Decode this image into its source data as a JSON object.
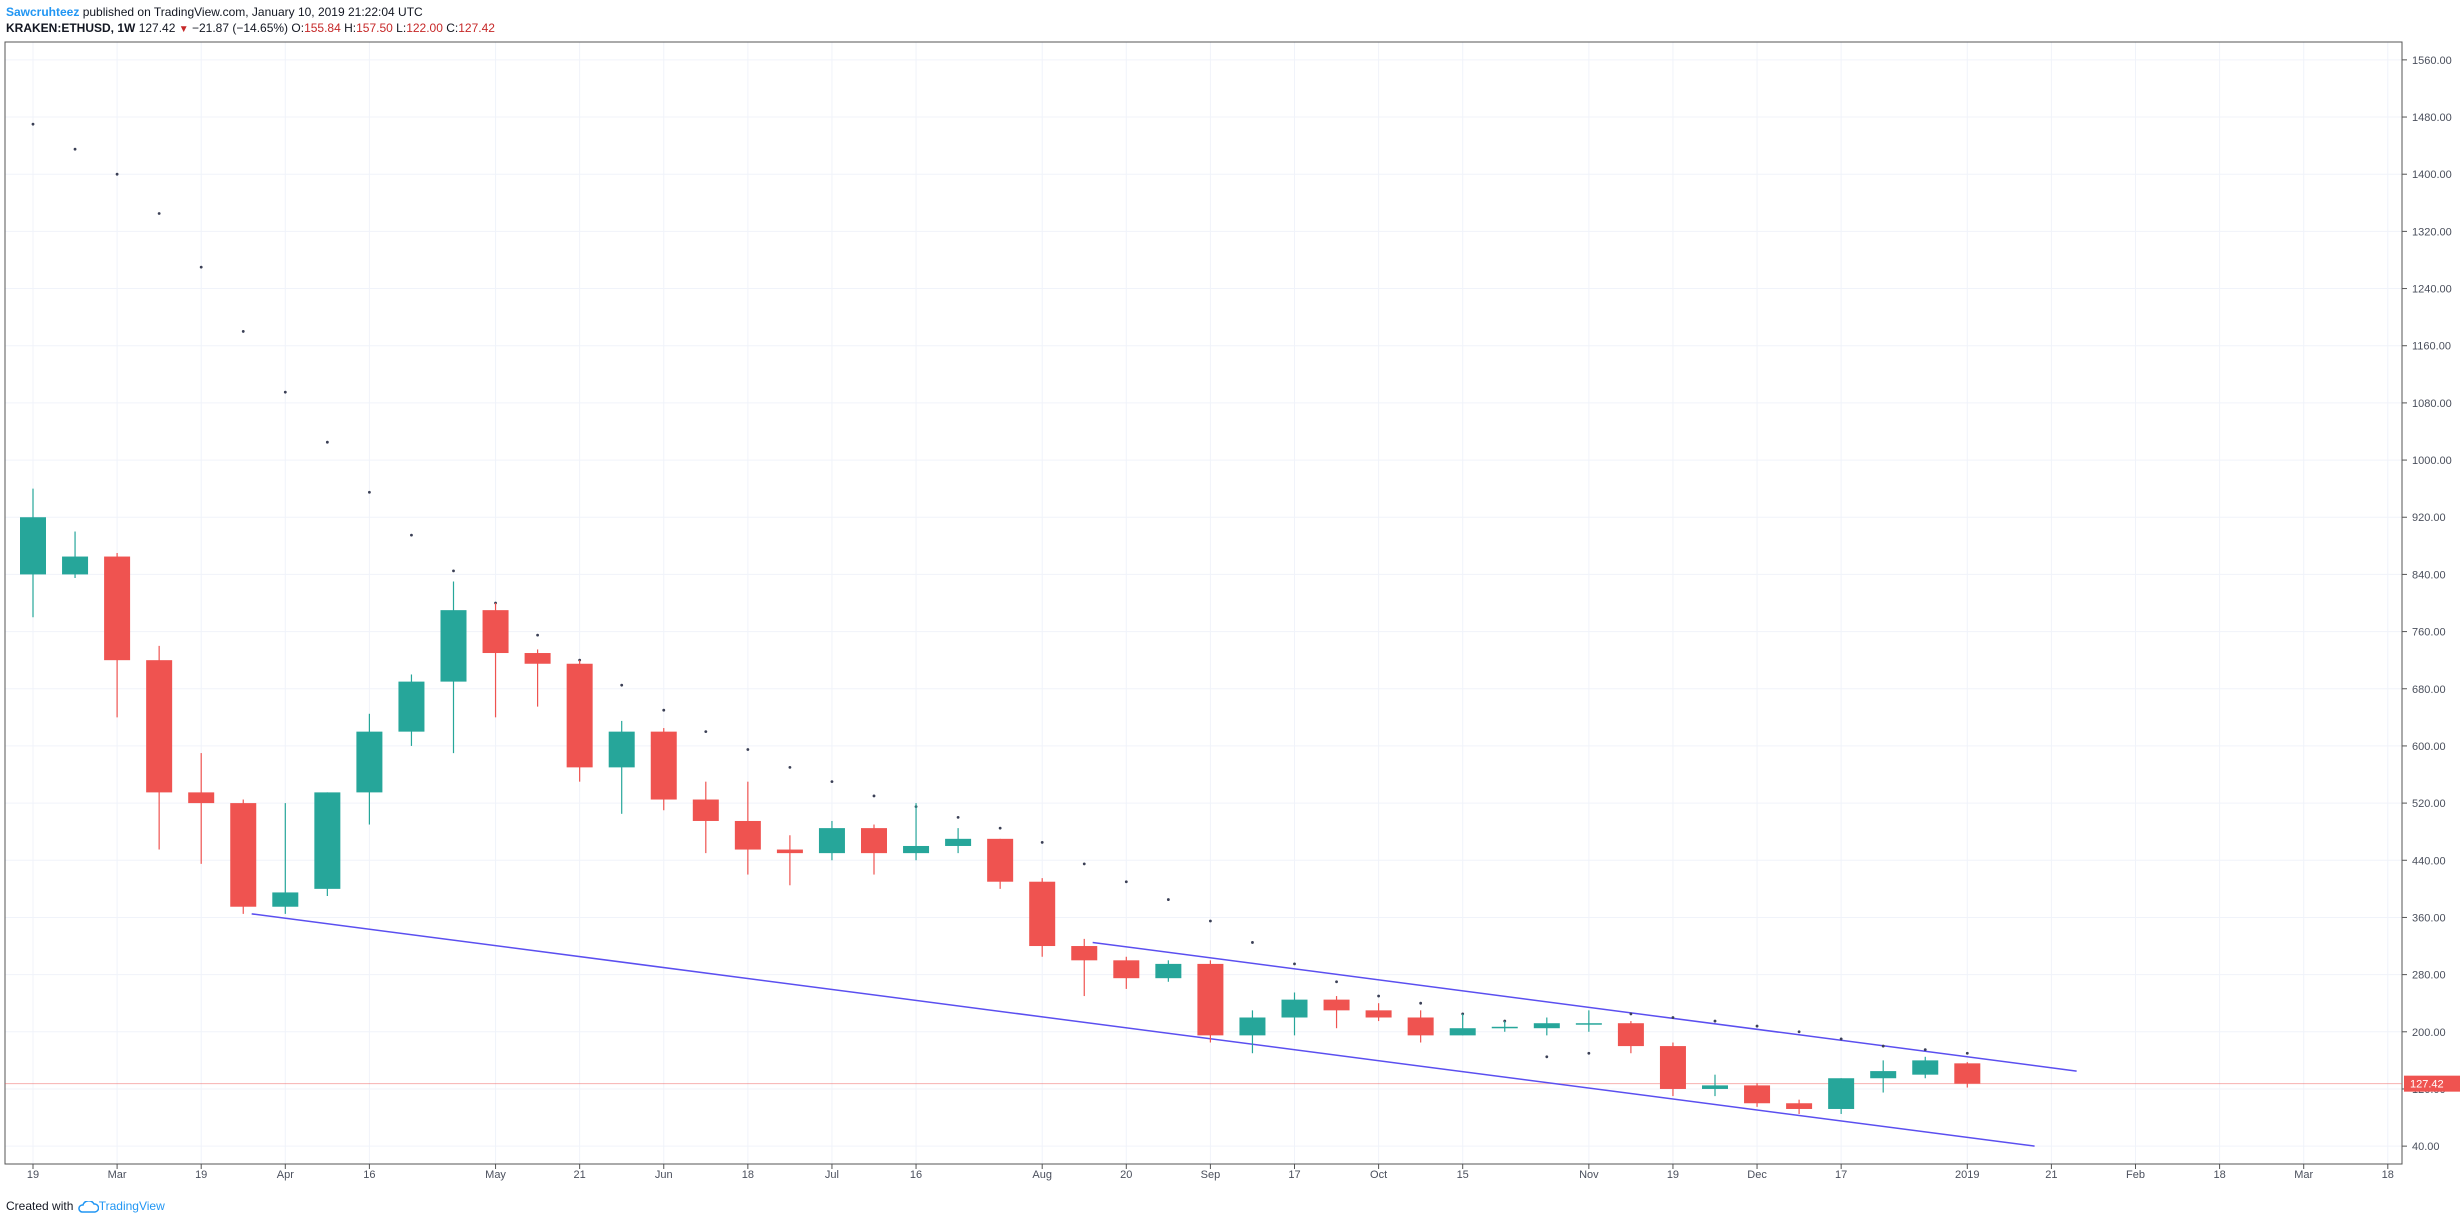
{
  "header": {
    "author": "Sawcruhteez",
    "published_text": "published on TradingView.com, January 10, 2019 21:22:04 UTC",
    "symbol": "KRAKEN:ETHUSD, 1W",
    "last": "127.42",
    "change": "−21.87 (−14.65%)",
    "o_label": "O:",
    "o_value": "155.84",
    "h_label": "H:",
    "h_value": "157.50",
    "l_label": "L:",
    "l_value": "122.00",
    "c_label": "C:",
    "c_value": "127.42"
  },
  "footer": {
    "created_with": "Created with",
    "brand": "TradingView"
  },
  "colors": {
    "up": "#26a69a",
    "down": "#ef5350",
    "trendline": "#5b4ff0",
    "price_line": "#ef5350",
    "sar_dot": "#3a3f55",
    "grid": "#f0f3fa",
    "axis_text": "#4a4f5c"
  },
  "chart_data": {
    "type": "candlestick",
    "symbol": "KRAKEN:ETHUSD",
    "interval": "1W",
    "y_axis": {
      "ticks": [
        40,
        120,
        200,
        280,
        360,
        440,
        520,
        600,
        680,
        760,
        840,
        920,
        1000,
        1080,
        1160,
        1240,
        1320,
        1400,
        1480,
        1560
      ],
      "tick_labels": [
        "40.00",
        "120.00",
        "200.00",
        "280.00",
        "360.00",
        "440.00",
        "520.00",
        "600.00",
        "680.00",
        "760.00",
        "840.00",
        "920.00",
        "1000.00",
        "1080.00",
        "1160.00",
        "1240.00",
        "1320.00",
        "1400.00",
        "1480.00",
        "1560.00"
      ],
      "range": [
        15,
        1585
      ],
      "last_price_label": "127.42"
    },
    "x_axis": {
      "start_week": 0,
      "end_week": 57.4,
      "tick_labels": [
        {
          "week": 0,
          "label": "19"
        },
        {
          "week": 2,
          "label": "Mar"
        },
        {
          "week": 4,
          "label": "19"
        },
        {
          "week": 6,
          "label": "Apr"
        },
        {
          "week": 8,
          "label": "16"
        },
        {
          "week": 11,
          "label": "May"
        },
        {
          "week": 13,
          "label": "21"
        },
        {
          "week": 15,
          "label": "Jun"
        },
        {
          "week": 17,
          "label": "18"
        },
        {
          "week": 19,
          "label": "Jul"
        },
        {
          "week": 21,
          "label": "16"
        },
        {
          "week": 24,
          "label": "Aug"
        },
        {
          "week": 26,
          "label": "20"
        },
        {
          "week": 28,
          "label": "Sep"
        },
        {
          "week": 30,
          "label": "17"
        },
        {
          "week": 32,
          "label": "Oct"
        },
        {
          "week": 34,
          "label": "15"
        },
        {
          "week": 37,
          "label": "Nov"
        },
        {
          "week": 39,
          "label": "19"
        },
        {
          "week": 41,
          "label": "Dec"
        },
        {
          "week": 43,
          "label": "17"
        },
        {
          "week": 46,
          "label": "2019"
        },
        {
          "week": 48,
          "label": "21"
        },
        {
          "week": 50,
          "label": "Feb"
        },
        {
          "week": 52,
          "label": "18"
        },
        {
          "week": 54,
          "label": "Mar"
        },
        {
          "week": 56,
          "label": "18"
        }
      ]
    },
    "candles": [
      {
        "o": 840,
        "h": 960,
        "l": 780,
        "c": 920
      },
      {
        "o": 840,
        "h": 900,
        "l": 835,
        "c": 865
      },
      {
        "o": 865,
        "h": 870,
        "l": 640,
        "c": 720
      },
      {
        "o": 720,
        "h": 740,
        "l": 455,
        "c": 535
      },
      {
        "o": 535,
        "h": 590,
        "l": 435,
        "c": 520
      },
      {
        "o": 520,
        "h": 525,
        "l": 365,
        "c": 375
      },
      {
        "o": 375,
        "h": 520,
        "l": 365,
        "c": 395
      },
      {
        "o": 400,
        "h": 535,
        "l": 390,
        "c": 535
      },
      {
        "o": 535,
        "h": 645,
        "l": 490,
        "c": 620
      },
      {
        "o": 620,
        "h": 700,
        "l": 600,
        "c": 690
      },
      {
        "o": 690,
        "h": 830,
        "l": 590,
        "c": 790
      },
      {
        "o": 790,
        "h": 800,
        "l": 640,
        "c": 730
      },
      {
        "o": 730,
        "h": 735,
        "l": 655,
        "c": 715
      },
      {
        "o": 715,
        "h": 720,
        "l": 550,
        "c": 570
      },
      {
        "o": 570,
        "h": 635,
        "l": 505,
        "c": 620
      },
      {
        "o": 620,
        "h": 625,
        "l": 510,
        "c": 525
      },
      {
        "o": 525,
        "h": 550,
        "l": 450,
        "c": 495
      },
      {
        "o": 495,
        "h": 550,
        "l": 420,
        "c": 455
      },
      {
        "o": 455,
        "h": 475,
        "l": 405,
        "c": 450
      },
      {
        "o": 450,
        "h": 495,
        "l": 440,
        "c": 485
      },
      {
        "o": 485,
        "h": 490,
        "l": 420,
        "c": 450
      },
      {
        "o": 450,
        "h": 520,
        "l": 440,
        "c": 460
      },
      {
        "o": 460,
        "h": 485,
        "l": 450,
        "c": 470
      },
      {
        "o": 470,
        "h": 470,
        "l": 400,
        "c": 410
      },
      {
        "o": 410,
        "h": 415,
        "l": 305,
        "c": 320
      },
      {
        "o": 320,
        "h": 330,
        "l": 250,
        "c": 300
      },
      {
        "o": 300,
        "h": 305,
        "l": 260,
        "c": 275
      },
      {
        "o": 275,
        "h": 300,
        "l": 270,
        "c": 295
      },
      {
        "o": 295,
        "h": 300,
        "l": 185,
        "c": 195
      },
      {
        "o": 195,
        "h": 230,
        "l": 170,
        "c": 220
      },
      {
        "o": 220,
        "h": 255,
        "l": 195,
        "c": 245
      },
      {
        "o": 245,
        "h": 250,
        "l": 205,
        "c": 230
      },
      {
        "o": 230,
        "h": 240,
        "l": 215,
        "c": 220
      },
      {
        "o": 220,
        "h": 230,
        "l": 185,
        "c": 195
      },
      {
        "o": 195,
        "h": 225,
        "l": 195,
        "c": 205
      },
      {
        "o": 205,
        "h": 215,
        "l": 200,
        "c": 207
      },
      {
        "o": 205,
        "h": 220,
        "l": 195,
        "c": 212
      },
      {
        "o": 210,
        "h": 230,
        "l": 200,
        "c": 212
      },
      {
        "o": 212,
        "h": 215,
        "l": 170,
        "c": 180
      },
      {
        "o": 180,
        "h": 185,
        "l": 110,
        "c": 120
      },
      {
        "o": 120,
        "h": 140,
        "l": 110,
        "c": 125
      },
      {
        "o": 125,
        "h": 128,
        "l": 95,
        "c": 100
      },
      {
        "o": 100,
        "h": 105,
        "l": 85,
        "c": 92
      },
      {
        "o": 92,
        "h": 135,
        "l": 85,
        "c": 135
      },
      {
        "o": 135,
        "h": 160,
        "l": 115,
        "c": 145
      },
      {
        "o": 140,
        "h": 165,
        "l": 135,
        "c": 160
      },
      {
        "o": 155.84,
        "h": 157.5,
        "l": 122,
        "c": 127.42
      }
    ],
    "parabolic_sar": [
      {
        "week": 0,
        "v": 1470
      },
      {
        "week": 1,
        "v": 1435
      },
      {
        "week": 2,
        "v": 1400
      },
      {
        "week": 3,
        "v": 1345
      },
      {
        "week": 4,
        "v": 1270
      },
      {
        "week": 5,
        "v": 1180
      },
      {
        "week": 6,
        "v": 1095
      },
      {
        "week": 7,
        "v": 1025
      },
      {
        "week": 8,
        "v": 955
      },
      {
        "week": 9,
        "v": 895
      },
      {
        "week": 10,
        "v": 845
      },
      {
        "week": 11,
        "v": 800
      },
      {
        "week": 12,
        "v": 755
      },
      {
        "week": 13,
        "v": 720
      },
      {
        "week": 14,
        "v": 685
      },
      {
        "week": 15,
        "v": 650
      },
      {
        "week": 16,
        "v": 620
      },
      {
        "week": 17,
        "v": 595
      },
      {
        "week": 18,
        "v": 570
      },
      {
        "week": 19,
        "v": 550
      },
      {
        "week": 20,
        "v": 530
      },
      {
        "week": 21,
        "v": 515
      },
      {
        "week": 22,
        "v": 500
      },
      {
        "week": 23,
        "v": 485
      },
      {
        "week": 24,
        "v": 465
      },
      {
        "week": 25,
        "v": 435
      },
      {
        "week": 26,
        "v": 410
      },
      {
        "week": 27,
        "v": 385
      },
      {
        "week": 28,
        "v": 355
      },
      {
        "week": 29,
        "v": 325
      },
      {
        "week": 30,
        "v": 295
      },
      {
        "week": 31,
        "v": 270
      },
      {
        "week": 32,
        "v": 250
      },
      {
        "week": 33,
        "v": 240
      },
      {
        "week": 34,
        "v": 225
      },
      {
        "week": 35,
        "v": 215
      },
      {
        "week": 36,
        "v": 165
      },
      {
        "week": 37,
        "v": 170
      },
      {
        "week": 38,
        "v": 225
      },
      {
        "week": 39,
        "v": 220
      },
      {
        "week": 40,
        "v": 215
      },
      {
        "week": 41,
        "v": 208
      },
      {
        "week": 42,
        "v": 200
      },
      {
        "week": 43,
        "v": 190
      },
      {
        "week": 44,
        "v": 180
      },
      {
        "week": 45,
        "v": 175
      },
      {
        "week": 46,
        "v": 170
      }
    ],
    "trendlines": [
      {
        "name": "lower",
        "x1": 5.2,
        "y1": 365,
        "x2": 47.6,
        "y2": 40
      },
      {
        "name": "upper",
        "x1": 25.2,
        "y1": 325,
        "x2": 48.6,
        "y2": 145
      }
    ]
  }
}
